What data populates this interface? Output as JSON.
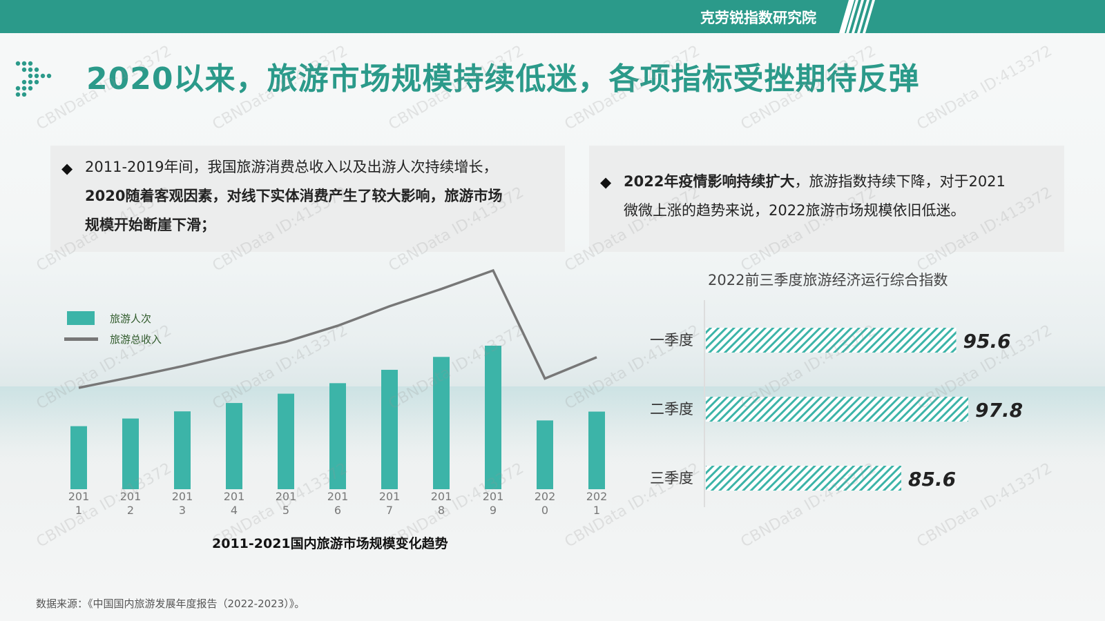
{
  "header": {
    "org": "克劳锐指数研究院"
  },
  "title": "2020以来，旅游市场规模持续低迷，各项指标受挫期待反弹",
  "points": {
    "left": {
      "bullet": "◆",
      "line1": "2011-2019年间，我国旅游消费总收入以及出游人次持续增长，",
      "line2": "2020随着客观因素，对线下实体消费产生了较大影响，旅游市场",
      "line3": "规模开始断崖下滑；"
    },
    "right": {
      "bullet": "◆",
      "line1_bold": "2022年疫情影响持续扩大",
      "line1_rest": "，旅游指数持续下降，对于2021",
      "line2": "微微上涨的趋势来说，2022旅游市场规模依旧低迷。"
    }
  },
  "watermark": "CBNData ID:413372",
  "source": "数据来源：《中国国内旅游发展年度报告（2022-2023）》。",
  "chart_data": [
    {
      "type": "bar",
      "title": "2011-2021国内旅游市场规模变化趋势",
      "categories": [
        "2011",
        "2012",
        "2013",
        "2014",
        "2015",
        "2016",
        "2017",
        "2018",
        "2019",
        "2020",
        "2021"
      ],
      "tick_labels": [
        [
          "201",
          "1"
        ],
        [
          "201",
          "2"
        ],
        [
          "201",
          "3"
        ],
        [
          "201",
          "4"
        ],
        [
          "201",
          "5"
        ],
        [
          "201",
          "6"
        ],
        [
          "201",
          "7"
        ],
        [
          "201",
          "8"
        ],
        [
          "201",
          "9"
        ],
        [
          "202",
          "0"
        ],
        [
          "202",
          "1"
        ]
      ],
      "series": [
        {
          "name": "旅游人次",
          "type": "bar",
          "color": "#3cb4a8",
          "values": [
            26.4,
            29.6,
            32.6,
            36.1,
            40.0,
            44.4,
            50.0,
            55.4,
            60.1,
            28.8,
            32.5
          ]
        },
        {
          "name": "旅游总收入",
          "type": "line",
          "color": "#777777",
          "values": [
            1.93,
            2.27,
            2.63,
            3.03,
            3.42,
            3.94,
            4.57,
            5.13,
            5.73,
            2.23,
            2.92
          ]
        }
      ],
      "legend_position": "top-left",
      "grid": false
    },
    {
      "type": "bar",
      "orientation": "horizontal",
      "title": "2022前三季度旅游经济运行综合指数",
      "categories": [
        "一季度",
        "二季度",
        "三季度"
      ],
      "values": [
        95.6,
        97.8,
        85.6
      ],
      "value_labels": [
        "95.6",
        "97.8",
        "85.6"
      ],
      "color": "#3cb4a8",
      "pattern": "diagonal-hatch",
      "xlim": [
        0,
        100
      ],
      "grid": false
    }
  ]
}
